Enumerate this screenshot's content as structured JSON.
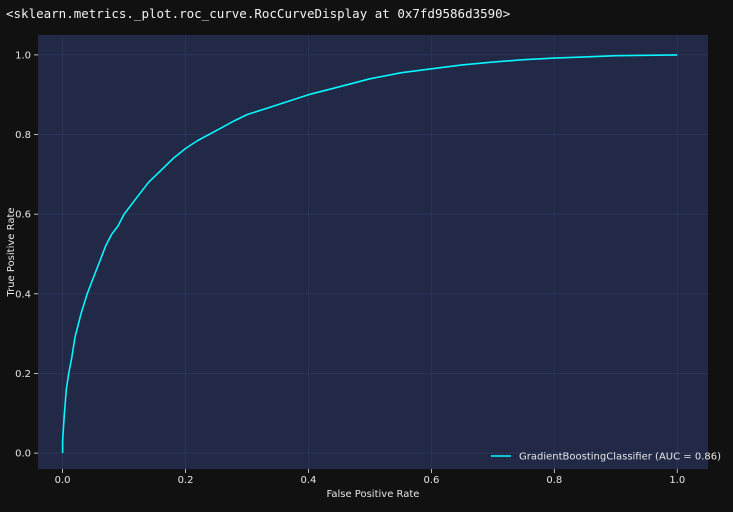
{
  "output_text": "<sklearn.metrics._plot.roc_curve.RocCurveDisplay at 0x7fd9586d3590>",
  "colors": {
    "page_background": "#111111",
    "plot_background": "#212946",
    "grid": "#2a3459",
    "curve": "#08f7fe",
    "text": "#e6e6e6"
  },
  "chart_data": {
    "type": "line",
    "title": "",
    "xlabel": "False Positive Rate",
    "ylabel": "True Positive Rate",
    "xlim": [
      -0.04,
      1.05
    ],
    "ylim": [
      -0.04,
      1.05
    ],
    "xticks": [
      0.0,
      0.2,
      0.4,
      0.6,
      0.8,
      1.0
    ],
    "yticks": [
      0.0,
      0.2,
      0.4,
      0.6,
      0.8,
      1.0
    ],
    "xtick_labels": [
      "0.0",
      "0.2",
      "0.4",
      "0.6",
      "0.8",
      "1.0"
    ],
    "ytick_labels": [
      "0.0",
      "0.2",
      "0.4",
      "0.6",
      "0.8",
      "1.0"
    ],
    "grid": true,
    "legend_position": "lower-right",
    "series": [
      {
        "name": "GradientBoostingClassifier (AUC = 0.86)",
        "x": [
          0.0,
          0.0,
          0.003,
          0.006,
          0.01,
          0.015,
          0.02,
          0.03,
          0.04,
          0.05,
          0.06,
          0.07,
          0.08,
          0.09,
          0.1,
          0.12,
          0.14,
          0.16,
          0.18,
          0.2,
          0.22,
          0.25,
          0.28,
          0.3,
          0.33,
          0.36,
          0.4,
          0.45,
          0.5,
          0.55,
          0.6,
          0.65,
          0.7,
          0.75,
          0.8,
          0.85,
          0.9,
          0.95,
          1.0
        ],
        "y": [
          0.0,
          0.03,
          0.1,
          0.16,
          0.2,
          0.24,
          0.29,
          0.35,
          0.4,
          0.44,
          0.48,
          0.52,
          0.55,
          0.57,
          0.6,
          0.64,
          0.68,
          0.71,
          0.74,
          0.765,
          0.785,
          0.81,
          0.835,
          0.85,
          0.865,
          0.88,
          0.9,
          0.92,
          0.94,
          0.955,
          0.965,
          0.975,
          0.982,
          0.988,
          0.992,
          0.995,
          0.998,
          0.999,
          1.0
        ]
      }
    ]
  }
}
